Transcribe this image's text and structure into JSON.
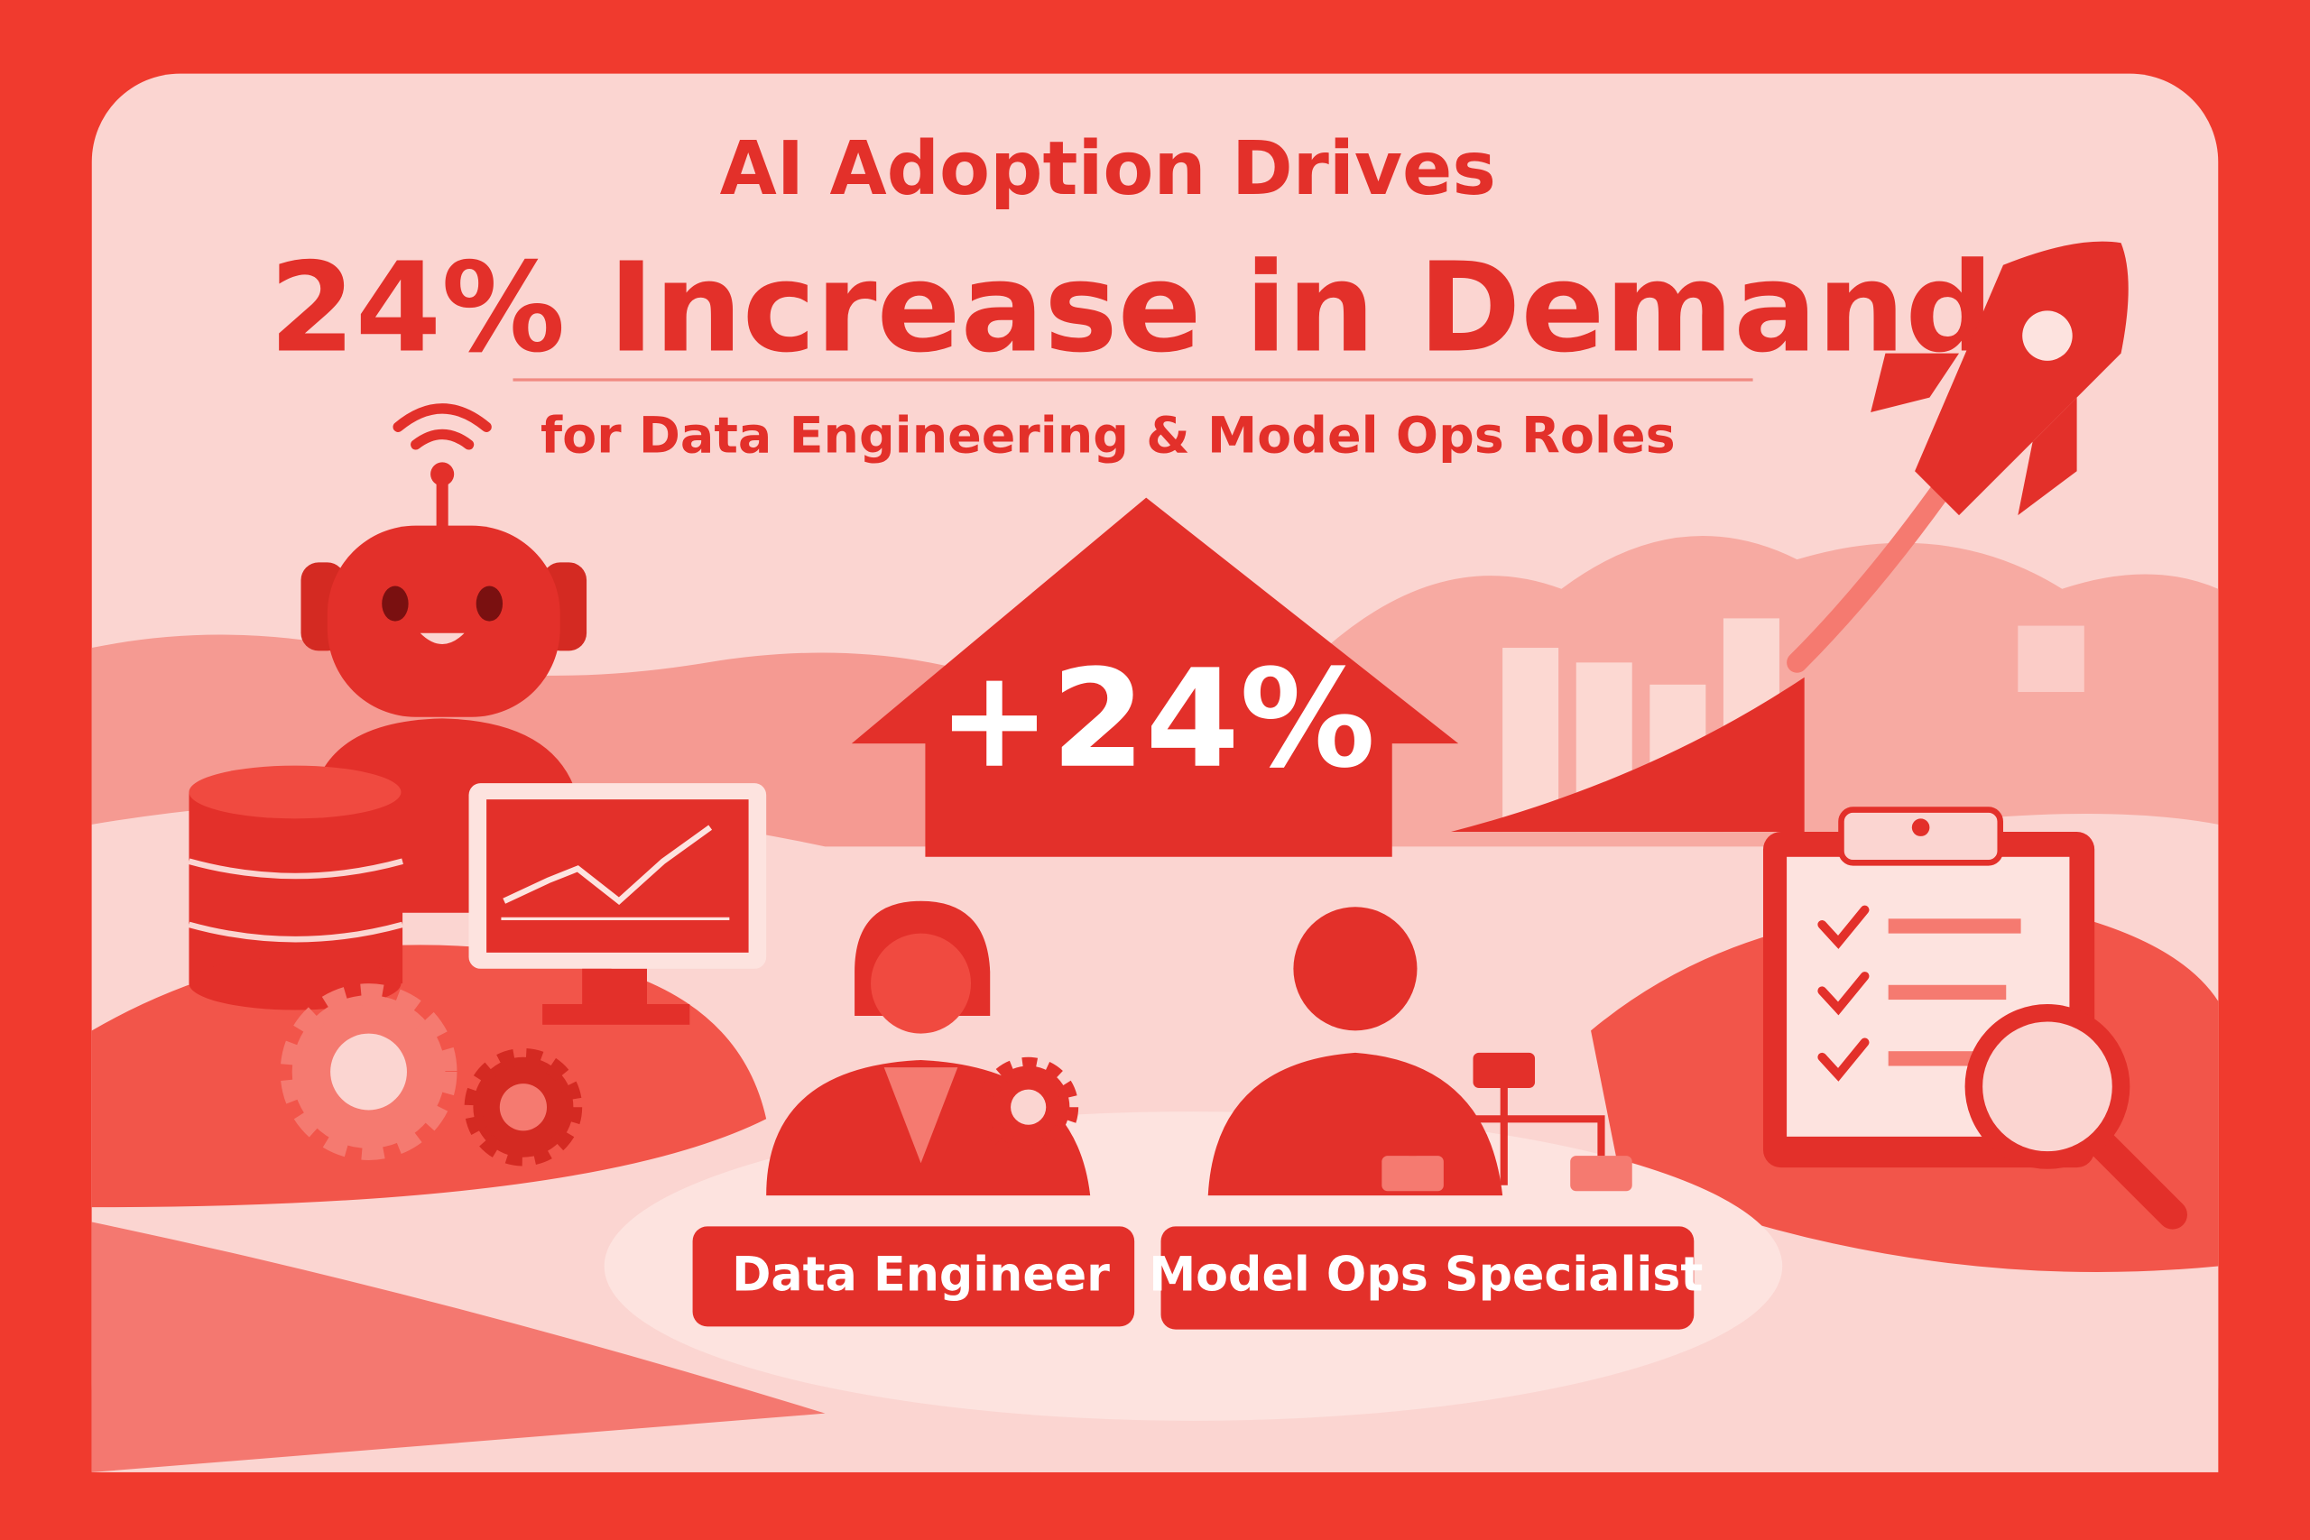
{
  "header": {
    "title": "AI Adoption Drives",
    "headline": "24% Increase in Demand",
    "subtitle": "for Data Engineering & Model Ops Roles"
  },
  "badge": "+24%",
  "roles": [
    "Data Engineer",
    "Model Ops Specialist"
  ]
}
